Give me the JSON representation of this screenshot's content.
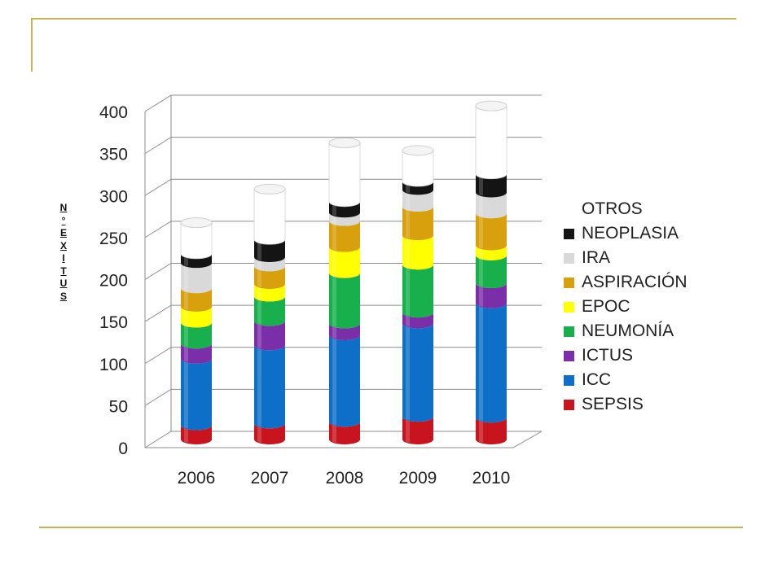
{
  "page": {
    "ylabel_letters": [
      "N",
      "°",
      "E",
      "X",
      "I",
      "T",
      "U",
      "S"
    ]
  },
  "colors": {
    "SEPSIS": "#c8141e",
    "ICC": "#0e6fc8",
    "ICTUS": "#7a2fa8",
    "NEUMONÍA": "#18b04c",
    "EPOC": "#ffff00",
    "ASPIRACIÓN": "#d8a00c",
    "IRA": "#d9d9d9",
    "NEOPLASIA": "#141414",
    "OTROS": "#ffffff"
  },
  "chart_data": {
    "type": "bar",
    "stacked": true,
    "style": "3d-cylinder",
    "title": "",
    "xlabel": "",
    "ylabel": "N° EXITUS",
    "ylim": [
      0,
      400
    ],
    "yticks": [
      0,
      50,
      100,
      150,
      200,
      250,
      300,
      350,
      400
    ],
    "grid": true,
    "legend_position": "right",
    "categories": [
      "2006",
      "2007",
      "2008",
      "2009",
      "2010"
    ],
    "series": [
      {
        "name": "SEPSIS",
        "values": [
          17,
          19,
          21,
          27,
          26
        ]
      },
      {
        "name": "ICC",
        "values": [
          79,
          93,
          103,
          111,
          136
        ]
      },
      {
        "name": "ICTUS",
        "values": [
          18,
          29,
          14,
          13,
          24
        ]
      },
      {
        "name": "NEUMONÍA",
        "values": [
          25,
          29,
          60,
          57,
          33
        ]
      },
      {
        "name": "EPOC",
        "values": [
          19,
          15,
          31,
          35,
          12
        ]
      },
      {
        "name": "ASPIRACIÓN",
        "values": [
          22,
          21,
          31,
          34,
          38
        ]
      },
      {
        "name": "IRA",
        "values": [
          30,
          11,
          10,
          20,
          25
        ]
      },
      {
        "name": "NEOPLASIA",
        "values": [
          11,
          21,
          13,
          10,
          22
        ]
      },
      {
        "name": "OTROS",
        "values": [
          37,
          60,
          70,
          37,
          81
        ]
      }
    ]
  }
}
